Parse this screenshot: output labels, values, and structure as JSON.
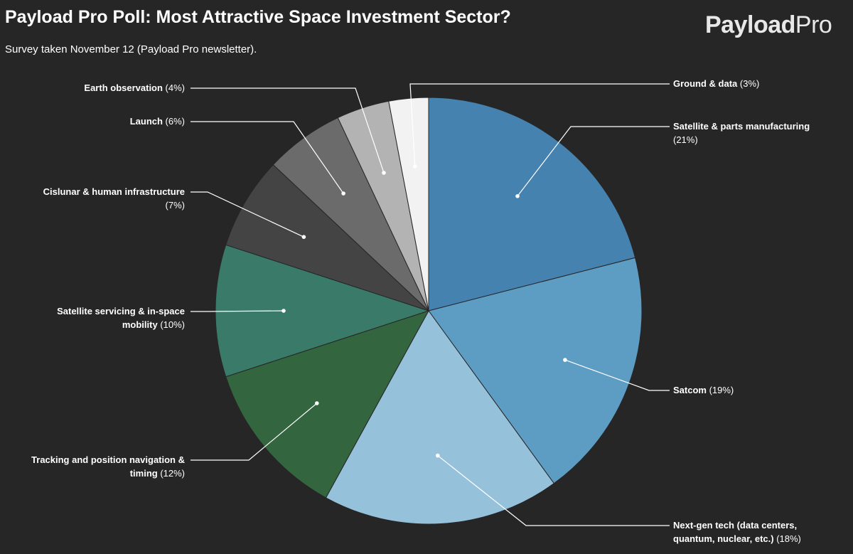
{
  "header": {
    "title": "Payload Pro Poll: Most Attractive Space Investment Sector?",
    "subtitle": "Survey taken November 12 (Payload Pro newsletter)."
  },
  "logo": {
    "text_bold": "Paylo",
    "text_mid": "ad",
    "text_light": "Pro"
  },
  "chart_data": {
    "type": "pie",
    "title": "Payload Pro Poll: Most Attractive Space Investment Sector?",
    "subtitle": "Survey taken November 12 (Payload Pro newsletter).",
    "unit": "%",
    "start_angle_deg": 0,
    "direction": "clockwise",
    "slices": [
      {
        "label": "Satellite & parts manufacturing",
        "value": 21,
        "color": "#4682b0",
        "label_lines": [
          "Satellite & parts manufacturing",
          "(21%)"
        ]
      },
      {
        "label": "Satcom",
        "value": 19,
        "color": "#5d9dc3",
        "label_lines": [
          "Satcom (19%)"
        ]
      },
      {
        "label": "Next-gen tech (data centers, quantum, nuclear, etc.)",
        "value": 18,
        "color": "#95c1db",
        "label_lines": [
          "Next-gen tech (data centers,",
          "quantum, nuclear, etc.) (18%)"
        ]
      },
      {
        "label": "Tracking and position navigation & timing",
        "value": 12,
        "color": "#33653f",
        "label_lines": [
          "Tracking and position navigation &",
          "timing (12%)"
        ]
      },
      {
        "label": "Satellite servicing & in-space mobility",
        "value": 10,
        "color": "#3a7a68",
        "label_lines": [
          "Satellite servicing & in-space",
          "mobility (10%)"
        ]
      },
      {
        "label": "Cislunar & human infrastructure",
        "value": 7,
        "color": "#444444",
        "label_lines": [
          "Cislunar & human infrastructure",
          "(7%)"
        ]
      },
      {
        "label": "Launch",
        "value": 6,
        "color": "#6b6b6b",
        "label_lines": [
          "Launch (6%)"
        ]
      },
      {
        "label": "Earth observation",
        "value": 4,
        "color": "#b3b3b3",
        "label_lines": [
          "Earth observation (4%)"
        ]
      },
      {
        "label": "Ground & data",
        "value": 3,
        "color": "#f2f2f2",
        "label_lines": [
          "Ground & data (3%)"
        ]
      }
    ]
  }
}
